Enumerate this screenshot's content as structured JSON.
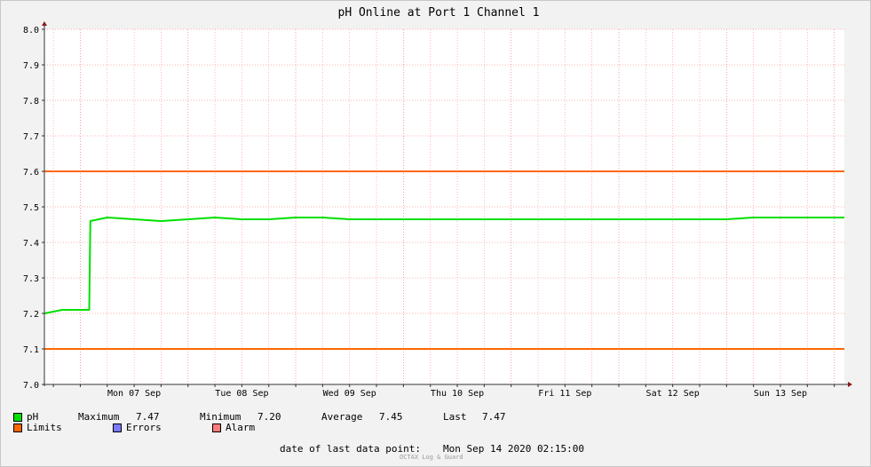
{
  "chart_data": {
    "type": "line",
    "title": "pH Online at Port 1 Channel 1",
    "ylim": [
      7.0,
      8.0
    ],
    "y_ticks": [
      "7.0",
      "7.1",
      "7.2",
      "7.3",
      "7.4",
      "7.5",
      "7.6",
      "7.7",
      "7.8",
      "7.9",
      "8.0"
    ],
    "x_tick_labels": [
      "Mon 07 Sep",
      "Tue 08 Sep",
      "Wed 09 Sep",
      "Thu 10 Sep",
      "Fri 11 Sep",
      "Sat 12 Sep",
      "Sun 13 Sep"
    ],
    "x_range": [
      "2020-09-06 16:00",
      "2020-09-14 02:15"
    ],
    "grid": true,
    "series": [
      {
        "name": "pH",
        "color": "#00e000",
        "x": [
          "2020-09-06 16:00",
          "2020-09-06 20:00",
          "2020-09-07 00:00",
          "2020-09-07 02:00",
          "2020-09-07 02:10",
          "2020-09-07 02:15",
          "2020-09-07 06:00",
          "2020-09-07 12:00",
          "2020-09-07 18:00",
          "2020-09-08 00:00",
          "2020-09-08 06:00",
          "2020-09-08 12:00",
          "2020-09-08 18:00",
          "2020-09-09 00:00",
          "2020-09-09 06:00",
          "2020-09-09 12:00",
          "2020-09-09 18:00",
          "2020-09-10 00:00",
          "2020-09-10 06:00",
          "2020-09-10 12:00",
          "2020-09-10 18:00",
          "2020-09-11 00:00",
          "2020-09-11 06:00",
          "2020-09-11 12:00",
          "2020-09-11 18:00",
          "2020-09-12 00:00",
          "2020-09-12 06:00",
          "2020-09-12 12:00",
          "2020-09-12 18:00",
          "2020-09-13 00:00",
          "2020-09-13 06:00",
          "2020-09-13 12:00",
          "2020-09-13 18:00",
          "2020-09-14 00:00",
          "2020-09-14 02:15"
        ],
        "values": [
          7.2,
          7.21,
          7.21,
          7.21,
          7.39,
          7.46,
          7.47,
          7.465,
          7.46,
          7.465,
          7.47,
          7.465,
          7.465,
          7.47,
          7.47,
          7.465,
          7.465,
          7.465,
          7.465,
          7.465,
          7.465,
          7.465,
          7.465,
          7.465,
          7.465,
          7.465,
          7.465,
          7.465,
          7.465,
          7.465,
          7.47,
          7.47,
          7.47,
          7.47,
          7.47
        ]
      }
    ],
    "limits": {
      "color": "#ff6600",
      "low": 7.1,
      "high": 7.6
    }
  },
  "legend": {
    "ph_label": "pH",
    "max_label": "Maximum",
    "max_value": "7.47",
    "min_label": "Minimum",
    "min_value": "7.20",
    "avg_label": "Average",
    "avg_value": "7.45",
    "last_label": "Last",
    "last_value": "7.47",
    "limits_label": "Limits",
    "errors_label": "Errors",
    "alarm_label": "Alarm",
    "colors": {
      "ph": "#00e000",
      "limits": "#ff6600",
      "errors": "#7a7aff",
      "alarm": "#ff7a7a"
    }
  },
  "footer": {
    "last_point_label": "date of last data point:",
    "last_point_value": "Mon Sep 14 2020 02:15:00",
    "credit": "OCTAX Log & Guard"
  }
}
